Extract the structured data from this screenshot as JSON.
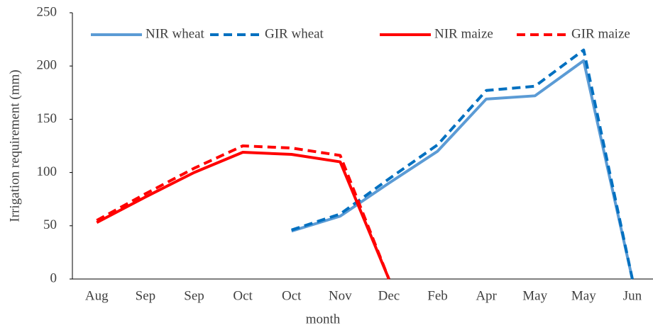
{
  "chart_data": {
    "type": "line",
    "xlabel": "month",
    "ylabel": "Irrigation requirement (mm)",
    "categories": [
      "Aug",
      "Sep",
      "Sep",
      "Oct",
      "Oct",
      "Nov",
      "Dec",
      "Feb",
      "Apr",
      "May",
      "May",
      "Jun"
    ],
    "series": [
      {
        "name": "NIR wheat",
        "color": "#5b9bd5",
        "dash": false,
        "values": [
          null,
          null,
          null,
          null,
          45,
          59,
          90,
          120,
          169,
          172,
          205,
          0
        ]
      },
      {
        "name": "GIR wheat",
        "color": "#0070c0",
        "dash": true,
        "values": [
          null,
          null,
          null,
          null,
          46,
          61,
          94,
          126,
          177,
          181,
          215,
          0
        ]
      },
      {
        "name": "NIR maize",
        "color": "#ff0000",
        "dash": false,
        "values": [
          53,
          77,
          100,
          119,
          117,
          110,
          0,
          null,
          null,
          null,
          null,
          null
        ]
      },
      {
        "name": "GIR maize",
        "color": "#ff0000",
        "dash": true,
        "values": [
          55,
          80,
          104,
          125,
          123,
          116,
          0,
          null,
          null,
          null,
          null,
          null
        ]
      }
    ],
    "ylim": [
      0,
      250
    ],
    "yticks": [
      0,
      50,
      100,
      150,
      200,
      250
    ],
    "legend": "top"
  }
}
